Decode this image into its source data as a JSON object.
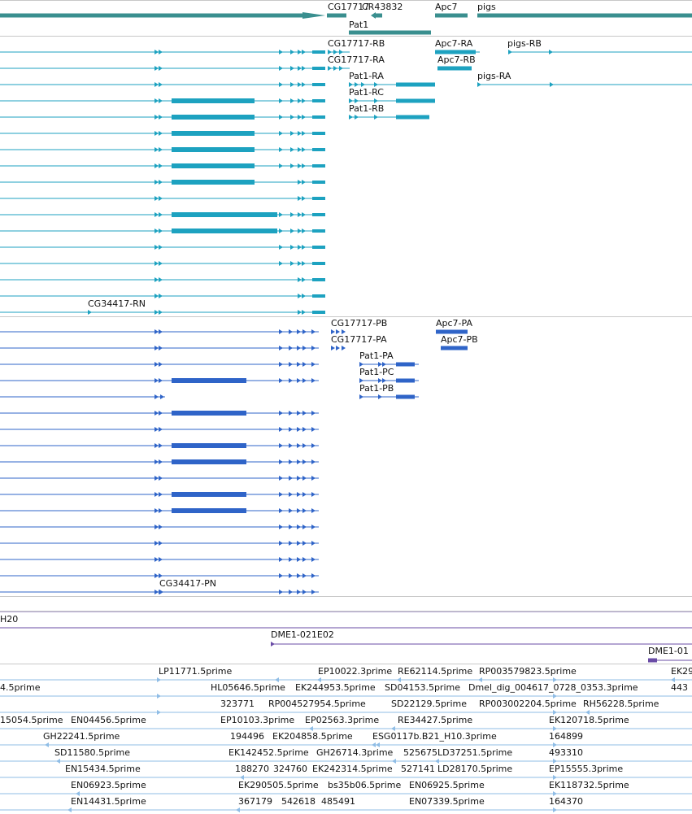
{
  "colors": {
    "gene_span": "#3a8f8f",
    "transcript_a": "#1da2c0",
    "transcript_b": "#2f64c8",
    "clone": "#6a4ca6",
    "est": "#8fbde6",
    "separator": "#c8c8c8"
  },
  "genes_track": {
    "labels": [
      "CG17717",
      "CR43832",
      "Apc7",
      "pigs",
      "Pat1"
    ]
  },
  "transcripts_track_a": {
    "labels": [
      "CG17717-RB",
      "Apc7-RA",
      "pigs-RB",
      "CG17717-RA",
      "Apc7-RB",
      "Pat1-RA",
      "pigs-RA",
      "Pat1-RC",
      "Pat1-RB",
      "CG34417-RN"
    ]
  },
  "transcripts_track_b": {
    "labels": [
      "CG17717-PB",
      "Apc7-PA",
      "CG17717-PA",
      "Apc7-PB",
      "Pat1-PA",
      "Pat1-PC",
      "Pat1-PB",
      "CG34417-PN"
    ]
  },
  "clones_track": {
    "labels": [
      "H20",
      "DME1-021E02",
      "DME1-01"
    ]
  },
  "est_track": {
    "labels": [
      "LP11771.5prime",
      "EP10022.3prime",
      "RE62114.5prime",
      "RP003579823.5prime",
      "EK29",
      "4.5prime",
      "HL05646.5prime",
      "EK244953.5prime",
      "SD04153.5prime",
      "Dmel_dig_004617_0728_0353.3prime",
      "443",
      "323771",
      "RP004527954.5prime",
      "SD22129.5prime",
      "RP003002204.5prime",
      "RH56228.5prime",
      "15054.5prime",
      "EN04456.5prime",
      "EP10103.3prime",
      "EP02563.3prime",
      "RE34427.5prime",
      "EK120718.5prime",
      "GH22241.5prime",
      "194496",
      "EK204858.5prime",
      "ESG0117b.B21_H10.3prime",
      "164899",
      "SD11580.5prime",
      "EK142452.5prime",
      "GH26714.3prime",
      "525675",
      "LD37251.5prime",
      "493310",
      "EN15434.5prime",
      "188270",
      "324760",
      "EK242314.5prime",
      "527141",
      "LD28170.5prime",
      "EP15555.3prime",
      "EN06923.5prime",
      "EK290505.5prime",
      "bs35b06.5prime",
      "EN06925.5prime",
      "EK118732.5prime",
      "EN14431.5prime",
      "367179",
      "542618",
      "485491",
      "EN07339.5prime",
      "164370"
    ]
  }
}
